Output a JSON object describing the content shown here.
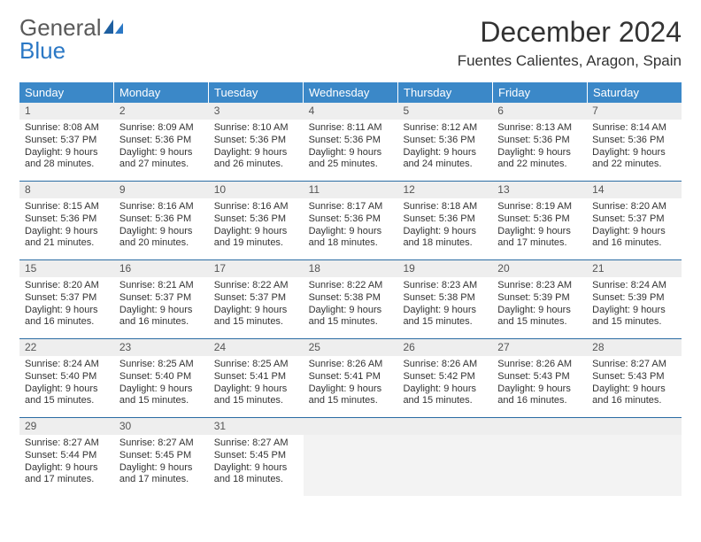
{
  "brand": {
    "line1a": "General",
    "line1b": "Blue"
  },
  "title": "December 2024",
  "location": "Fuentes Calientes, Aragon, Spain",
  "theme": {
    "header_bg": "#3b88c8",
    "header_text": "#ffffff",
    "rule": "#2b6ca3",
    "daynum_bg": "#eeeeee",
    "empty_bg": "#f3f3f3",
    "body_text": "#333333"
  },
  "weekdays": [
    "Sunday",
    "Monday",
    "Tuesday",
    "Wednesday",
    "Thursday",
    "Friday",
    "Saturday"
  ],
  "weeks": [
    [
      {
        "n": "1",
        "sr": "Sunrise: 8:08 AM",
        "ss": "Sunset: 5:37 PM",
        "d1": "Daylight: 9 hours",
        "d2": "and 28 minutes."
      },
      {
        "n": "2",
        "sr": "Sunrise: 8:09 AM",
        "ss": "Sunset: 5:36 PM",
        "d1": "Daylight: 9 hours",
        "d2": "and 27 minutes."
      },
      {
        "n": "3",
        "sr": "Sunrise: 8:10 AM",
        "ss": "Sunset: 5:36 PM",
        "d1": "Daylight: 9 hours",
        "d2": "and 26 minutes."
      },
      {
        "n": "4",
        "sr": "Sunrise: 8:11 AM",
        "ss": "Sunset: 5:36 PM",
        "d1": "Daylight: 9 hours",
        "d2": "and 25 minutes."
      },
      {
        "n": "5",
        "sr": "Sunrise: 8:12 AM",
        "ss": "Sunset: 5:36 PM",
        "d1": "Daylight: 9 hours",
        "d2": "and 24 minutes."
      },
      {
        "n": "6",
        "sr": "Sunrise: 8:13 AM",
        "ss": "Sunset: 5:36 PM",
        "d1": "Daylight: 9 hours",
        "d2": "and 22 minutes."
      },
      {
        "n": "7",
        "sr": "Sunrise: 8:14 AM",
        "ss": "Sunset: 5:36 PM",
        "d1": "Daylight: 9 hours",
        "d2": "and 22 minutes."
      }
    ],
    [
      {
        "n": "8",
        "sr": "Sunrise: 8:15 AM",
        "ss": "Sunset: 5:36 PM",
        "d1": "Daylight: 9 hours",
        "d2": "and 21 minutes."
      },
      {
        "n": "9",
        "sr": "Sunrise: 8:16 AM",
        "ss": "Sunset: 5:36 PM",
        "d1": "Daylight: 9 hours",
        "d2": "and 20 minutes."
      },
      {
        "n": "10",
        "sr": "Sunrise: 8:16 AM",
        "ss": "Sunset: 5:36 PM",
        "d1": "Daylight: 9 hours",
        "d2": "and 19 minutes."
      },
      {
        "n": "11",
        "sr": "Sunrise: 8:17 AM",
        "ss": "Sunset: 5:36 PM",
        "d1": "Daylight: 9 hours",
        "d2": "and 18 minutes."
      },
      {
        "n": "12",
        "sr": "Sunrise: 8:18 AM",
        "ss": "Sunset: 5:36 PM",
        "d1": "Daylight: 9 hours",
        "d2": "and 18 minutes."
      },
      {
        "n": "13",
        "sr": "Sunrise: 8:19 AM",
        "ss": "Sunset: 5:36 PM",
        "d1": "Daylight: 9 hours",
        "d2": "and 17 minutes."
      },
      {
        "n": "14",
        "sr": "Sunrise: 8:20 AM",
        "ss": "Sunset: 5:37 PM",
        "d1": "Daylight: 9 hours",
        "d2": "and 16 minutes."
      }
    ],
    [
      {
        "n": "15",
        "sr": "Sunrise: 8:20 AM",
        "ss": "Sunset: 5:37 PM",
        "d1": "Daylight: 9 hours",
        "d2": "and 16 minutes."
      },
      {
        "n": "16",
        "sr": "Sunrise: 8:21 AM",
        "ss": "Sunset: 5:37 PM",
        "d1": "Daylight: 9 hours",
        "d2": "and 16 minutes."
      },
      {
        "n": "17",
        "sr": "Sunrise: 8:22 AM",
        "ss": "Sunset: 5:37 PM",
        "d1": "Daylight: 9 hours",
        "d2": "and 15 minutes."
      },
      {
        "n": "18",
        "sr": "Sunrise: 8:22 AM",
        "ss": "Sunset: 5:38 PM",
        "d1": "Daylight: 9 hours",
        "d2": "and 15 minutes."
      },
      {
        "n": "19",
        "sr": "Sunrise: 8:23 AM",
        "ss": "Sunset: 5:38 PM",
        "d1": "Daylight: 9 hours",
        "d2": "and 15 minutes."
      },
      {
        "n": "20",
        "sr": "Sunrise: 8:23 AM",
        "ss": "Sunset: 5:39 PM",
        "d1": "Daylight: 9 hours",
        "d2": "and 15 minutes."
      },
      {
        "n": "21",
        "sr": "Sunrise: 8:24 AM",
        "ss": "Sunset: 5:39 PM",
        "d1": "Daylight: 9 hours",
        "d2": "and 15 minutes."
      }
    ],
    [
      {
        "n": "22",
        "sr": "Sunrise: 8:24 AM",
        "ss": "Sunset: 5:40 PM",
        "d1": "Daylight: 9 hours",
        "d2": "and 15 minutes."
      },
      {
        "n": "23",
        "sr": "Sunrise: 8:25 AM",
        "ss": "Sunset: 5:40 PM",
        "d1": "Daylight: 9 hours",
        "d2": "and 15 minutes."
      },
      {
        "n": "24",
        "sr": "Sunrise: 8:25 AM",
        "ss": "Sunset: 5:41 PM",
        "d1": "Daylight: 9 hours",
        "d2": "and 15 minutes."
      },
      {
        "n": "25",
        "sr": "Sunrise: 8:26 AM",
        "ss": "Sunset: 5:41 PM",
        "d1": "Daylight: 9 hours",
        "d2": "and 15 minutes."
      },
      {
        "n": "26",
        "sr": "Sunrise: 8:26 AM",
        "ss": "Sunset: 5:42 PM",
        "d1": "Daylight: 9 hours",
        "d2": "and 15 minutes."
      },
      {
        "n": "27",
        "sr": "Sunrise: 8:26 AM",
        "ss": "Sunset: 5:43 PM",
        "d1": "Daylight: 9 hours",
        "d2": "and 16 minutes."
      },
      {
        "n": "28",
        "sr": "Sunrise: 8:27 AM",
        "ss": "Sunset: 5:43 PM",
        "d1": "Daylight: 9 hours",
        "d2": "and 16 minutes."
      }
    ],
    [
      {
        "n": "29",
        "sr": "Sunrise: 8:27 AM",
        "ss": "Sunset: 5:44 PM",
        "d1": "Daylight: 9 hours",
        "d2": "and 17 minutes."
      },
      {
        "n": "30",
        "sr": "Sunrise: 8:27 AM",
        "ss": "Sunset: 5:45 PM",
        "d1": "Daylight: 9 hours",
        "d2": "and 17 minutes."
      },
      {
        "n": "31",
        "sr": "Sunrise: 8:27 AM",
        "ss": "Sunset: 5:45 PM",
        "d1": "Daylight: 9 hours",
        "d2": "and 18 minutes."
      },
      {
        "empty": true
      },
      {
        "empty": true
      },
      {
        "empty": true
      },
      {
        "empty": true
      }
    ]
  ]
}
